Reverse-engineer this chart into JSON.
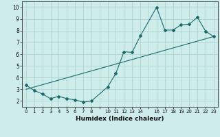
{
  "xlabel": "Humidex (Indice chaleur)",
  "bg_color": "#ceecea",
  "grid_color": "#aed4d0",
  "line_color": "#1a6b6b",
  "xlim": [
    -0.5,
    23.5
  ],
  "ylim": [
    1.5,
    10.5
  ],
  "xticks_all": [
    0,
    1,
    2,
    3,
    4,
    5,
    6,
    7,
    8,
    9,
    10,
    11,
    12,
    13,
    14,
    15,
    16,
    17,
    18,
    19,
    20,
    21,
    22,
    23
  ],
  "xtick_labels": [
    "0",
    "1",
    "2",
    "3",
    "4",
    "5",
    "6",
    "7",
    "8",
    "",
    "10",
    "11",
    "12",
    "13",
    "14",
    "",
    "16",
    "17",
    "18",
    "19",
    "20",
    "21",
    "22",
    "23"
  ],
  "yticks": [
    2,
    3,
    4,
    5,
    6,
    7,
    8,
    9,
    10
  ],
  "data_x": [
    0,
    1,
    2,
    3,
    4,
    5,
    6,
    7,
    8,
    10,
    11,
    12,
    13,
    14,
    16,
    17,
    18,
    19,
    20,
    21,
    22,
    23
  ],
  "data_y": [
    3.35,
    2.9,
    2.6,
    2.2,
    2.4,
    2.2,
    2.1,
    1.9,
    2.0,
    3.2,
    4.35,
    6.2,
    6.15,
    7.55,
    10.0,
    8.05,
    8.05,
    8.5,
    8.55,
    9.15,
    7.95,
    7.5
  ],
  "trend_x": [
    0,
    23
  ],
  "trend_y": [
    3.0,
    7.5
  ]
}
